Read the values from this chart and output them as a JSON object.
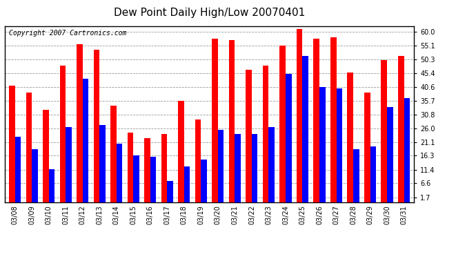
{
  "title": "Dew Point Daily High/Low 20070401",
  "copyright": "Copyright 2007 Cartronics.com",
  "dates": [
    "03/08",
    "03/09",
    "03/10",
    "03/11",
    "03/12",
    "03/13",
    "03/14",
    "03/15",
    "03/16",
    "03/17",
    "03/18",
    "03/19",
    "03/20",
    "03/21",
    "03/22",
    "03/23",
    "03/24",
    "03/25",
    "03/26",
    "03/27",
    "03/28",
    "03/29",
    "03/30",
    "03/31"
  ],
  "highs": [
    41.0,
    38.5,
    32.5,
    48.0,
    55.5,
    53.5,
    34.0,
    24.5,
    22.5,
    24.0,
    35.5,
    29.0,
    57.5,
    57.0,
    46.5,
    48.0,
    55.0,
    61.0,
    57.5,
    58.0,
    45.5,
    38.5,
    50.0,
    51.5
  ],
  "lows": [
    23.0,
    18.5,
    11.5,
    26.5,
    43.5,
    27.0,
    20.5,
    16.5,
    16.0,
    7.5,
    12.5,
    15.0,
    25.5,
    24.0,
    24.0,
    26.5,
    45.0,
    51.5,
    40.5,
    40.0,
    18.5,
    19.5,
    33.5,
    36.5
  ],
  "high_color": "#ff0000",
  "low_color": "#0000ff",
  "background_color": "#ffffff",
  "grid_color": "#999999",
  "yticks": [
    1.7,
    6.6,
    11.4,
    16.3,
    21.1,
    26.0,
    30.8,
    35.7,
    40.6,
    45.4,
    50.3,
    55.1,
    60.0
  ],
  "ylim": [
    0,
    62
  ],
  "bar_width": 0.35,
  "title_fontsize": 11,
  "tick_fontsize": 7,
  "copyright_fontsize": 7
}
